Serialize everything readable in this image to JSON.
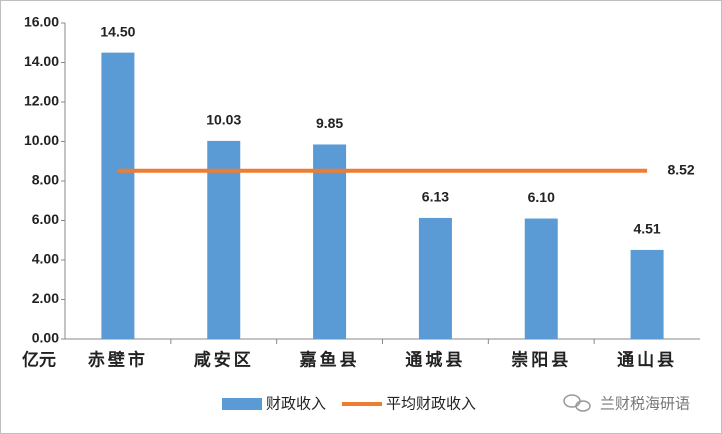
{
  "chart_data": {
    "type": "bar",
    "y_label": "亿元",
    "categories": [
      "赤壁市",
      "咸安区",
      "嘉鱼县",
      "通城县",
      "崇阳县",
      "通山县"
    ],
    "series": [
      {
        "name": "财政收入",
        "type": "bar",
        "color": "#5b9bd5",
        "values": [
          14.5,
          10.03,
          9.85,
          6.13,
          6.1,
          4.51
        ],
        "value_labels": [
          "14.50",
          "10.03",
          "9.85",
          "6.13",
          "6.10",
          "4.51"
        ]
      },
      {
        "name": "平均财政收入",
        "type": "line",
        "color": "#ed7d31",
        "values": [
          8.52,
          8.52,
          8.52,
          8.52,
          8.52,
          8.52
        ],
        "value_labels": [
          null,
          null,
          null,
          null,
          null,
          "8.52"
        ]
      }
    ],
    "ylim": [
      0,
      16
    ],
    "yticks": [
      {
        "value": 0,
        "label": "0.00"
      },
      {
        "value": 2,
        "label": "2.00"
      },
      {
        "value": 4,
        "label": "4.00"
      },
      {
        "value": 6,
        "label": "6.00"
      },
      {
        "value": 8,
        "label": "8.00"
      },
      {
        "value": 10,
        "label": "10.00"
      },
      {
        "value": 12,
        "label": "12.00"
      },
      {
        "value": 14,
        "label": "14.00"
      },
      {
        "value": 16,
        "label": "16.00"
      }
    ],
    "grid": false,
    "legend": "bottom",
    "watermark": "兰财税海研语"
  }
}
